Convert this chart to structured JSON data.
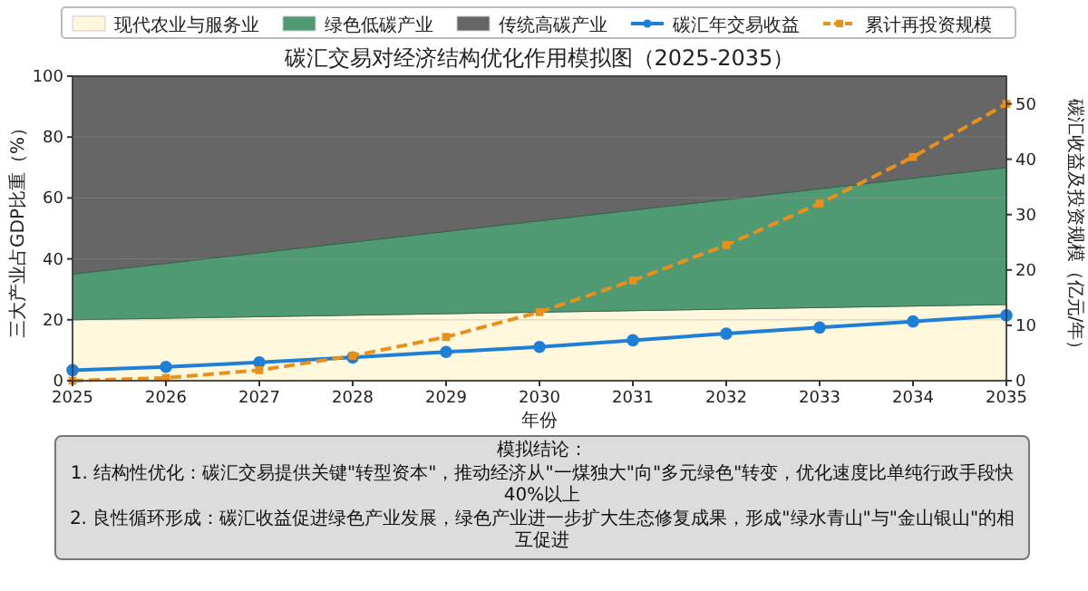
{
  "chart_data": {
    "type": "area",
    "title": "碳汇交易对经济结构优化作用模拟图（2025-2035）",
    "xlabel": "年份",
    "ylabel": "三大产业占GDP比重（%）",
    "y2label": "碳汇收益及投资规模（亿元/年）",
    "x": [
      2025,
      2026,
      2027,
      2028,
      2029,
      2030,
      2031,
      2032,
      2033,
      2034,
      2035
    ],
    "stacked": true,
    "legend": "top",
    "grid": "y",
    "xlim": [
      2025,
      2035
    ],
    "xticks": [
      2025,
      2026,
      2027,
      2028,
      2029,
      2030,
      2031,
      2032,
      2033,
      2034,
      2035
    ],
    "ylim": [
      0,
      100
    ],
    "yticks": [
      0,
      20,
      40,
      60,
      80,
      100
    ],
    "y2lim": [
      0,
      55
    ],
    "y2ticks": [
      0,
      10,
      20,
      30,
      40,
      50
    ],
    "series": [
      {
        "name": "现代农业与服务业",
        "color": "#fff8dc",
        "values": [
          20,
          20.5,
          21,
          21.5,
          22,
          22.5,
          23,
          23.5,
          24,
          24.5,
          25
        ]
      },
      {
        "name": "绿色低碳产业",
        "color": "#4f9a73",
        "values": [
          15,
          18,
          21,
          24,
          27,
          30,
          33,
          36,
          39,
          42,
          45
        ]
      },
      {
        "name": "传统高碳产业",
        "color": "#666666",
        "values": [
          65,
          61.5,
          58,
          54.5,
          51,
          47.5,
          44,
          40.5,
          37,
          33.5,
          30
        ]
      },
      {
        "name": "碳汇年交易收益",
        "type": "line",
        "axis": "y2",
        "color": "#1f7fd6",
        "marker": "circle",
        "line_style": "solid",
        "values": [
          1.9,
          2.5,
          3.3,
          4.2,
          5.2,
          6.1,
          7.3,
          8.5,
          9.6,
          10.7,
          11.8
        ]
      },
      {
        "name": "累计再投资规模",
        "type": "line",
        "axis": "y2",
        "color": "#e8901c",
        "marker": "square",
        "line_style": "dashed",
        "values": [
          0,
          0.5,
          1.9,
          4.5,
          7.9,
          12.4,
          18.1,
          24.5,
          32,
          40.4,
          50
        ]
      }
    ],
    "annotations": [
      "模拟结论：",
      "1. 结构性优化：碳汇交易提供关键\"转型资本\"，推动经济从\"一煤独大\"向\"多元绿色\"转变，优化速度比单纯行政手段快40%以上",
      "2. 良性循环形成：碳汇收益促进绿色产业发展，绿色产业进一步扩大生态修复成果，形成\"绿水青山\"与\"金山银山\"的相互促进"
    ]
  }
}
